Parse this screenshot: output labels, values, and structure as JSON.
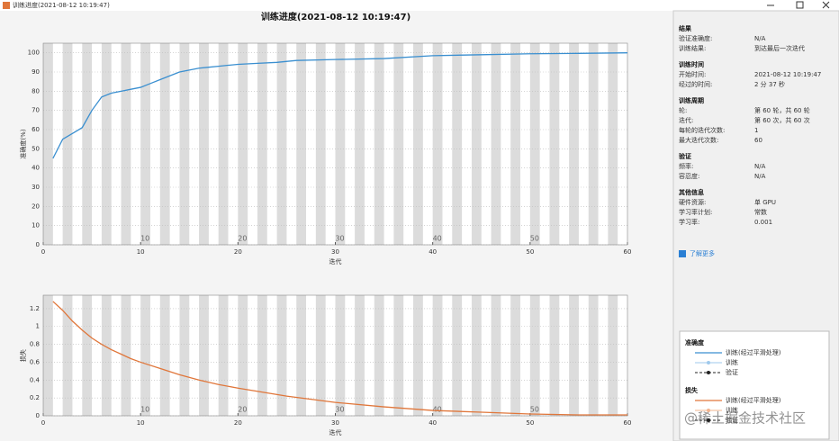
{
  "window_title": "训练进度(2021-08-12 10:19:47)",
  "plot_title": "训练进度(2021-08-12 10:19:47)",
  "chart_data": [
    {
      "type": "line",
      "xlabel": "迭代",
      "ylabel": "准确度(%)",
      "x": [
        1,
        2,
        3,
        4,
        5,
        6,
        7,
        8,
        9,
        10,
        11,
        12,
        13,
        14,
        15,
        16,
        17,
        18,
        19,
        20,
        22,
        24,
        26,
        30,
        35,
        40,
        45,
        50,
        55,
        60
      ],
      "series": [
        {
          "name": "训练(经过平滑处理)",
          "color": "#3a8fd0",
          "values": [
            45,
            55,
            58,
            61,
            70,
            77,
            79,
            80,
            81,
            82,
            84,
            86,
            88,
            90,
            91,
            92,
            92.5,
            93,
            93.5,
            94,
            94.5,
            95,
            96,
            96.5,
            97,
            98.5,
            99,
            99.5,
            99.7,
            100
          ]
        }
      ],
      "xlim": [
        0,
        60
      ],
      "ylim": [
        0,
        105
      ],
      "xticks": [
        0,
        10,
        20,
        30,
        40,
        50,
        60
      ],
      "yticks": [
        0,
        10,
        20,
        30,
        40,
        50,
        60,
        70,
        80,
        90,
        100
      ],
      "grid": true,
      "epoch_labels": [
        10,
        20,
        30,
        40,
        50
      ]
    },
    {
      "type": "line",
      "xlabel": "迭代",
      "ylabel": "损失",
      "x": [
        1,
        2,
        3,
        4,
        5,
        6,
        7,
        8,
        9,
        10,
        12,
        14,
        16,
        18,
        20,
        25,
        30,
        35,
        40,
        45,
        50,
        55,
        60
      ],
      "series": [
        {
          "name": "训练(经过平滑处理)",
          "color": "#e0763a",
          "values": [
            1.28,
            1.18,
            1.06,
            0.96,
            0.87,
            0.8,
            0.74,
            0.69,
            0.64,
            0.6,
            0.53,
            0.46,
            0.4,
            0.35,
            0.31,
            0.22,
            0.15,
            0.1,
            0.06,
            0.04,
            0.02,
            0.01,
            0.01
          ]
        }
      ],
      "xlim": [
        0,
        60
      ],
      "ylim": [
        0,
        1.35
      ],
      "xticks": [
        0,
        10,
        20,
        30,
        40,
        50,
        60
      ],
      "yticks": [
        0,
        0.2,
        0.4,
        0.6,
        0.8,
        1,
        1.2
      ],
      "grid": true,
      "epoch_labels": [
        10,
        20,
        30,
        40,
        50
      ]
    }
  ],
  "side_panel": {
    "sections": [
      {
        "title": "结果",
        "rows": [
          [
            "验证准确度:",
            "N/A"
          ],
          [
            "训练结果:",
            "到达最后一次迭代"
          ]
        ]
      },
      {
        "title": "训练时间",
        "rows": [
          [
            "开始时间:",
            "2021-08-12 10:19:47"
          ],
          [
            "经过的时间:",
            "2 分 37 秒"
          ]
        ]
      },
      {
        "title": "训练周期",
        "rows": [
          [
            "轮:",
            "第 60 轮，共 60 轮"
          ],
          [
            "迭代:",
            "第 60 次，共 60 次"
          ],
          [
            "每轮的迭代次数:",
            "1"
          ],
          [
            "最大迭代次数:",
            "60"
          ]
        ]
      },
      {
        "title": "验证",
        "rows": [
          [
            "频率:",
            "N/A"
          ],
          [
            "容忍度:",
            "N/A"
          ]
        ]
      },
      {
        "title": "其他信息",
        "rows": [
          [
            "硬件资源:",
            "单 GPU"
          ],
          [
            "学习率计划:",
            "常数"
          ],
          [
            "学习率:",
            "0.001"
          ]
        ]
      }
    ],
    "link": "了解更多",
    "legend": [
      {
        "title": "准确度",
        "extra": [
          {
            "label": "训练",
            "color": "#9fc9ec"
          },
          {
            "label": "验证",
            "color": "#222222"
          }
        ]
      },
      {
        "title": "损失",
        "extra": [
          {
            "label": "训练",
            "color": "#f2b48f"
          },
          {
            "label": "验证",
            "color": "#222222"
          }
        ]
      }
    ]
  },
  "watermark": "@稀土掘金技术社区"
}
